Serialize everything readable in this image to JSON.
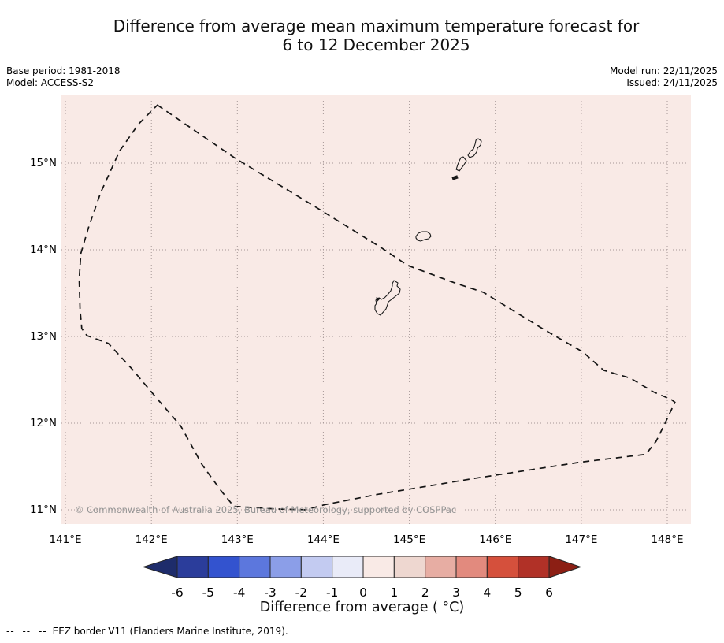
{
  "title": {
    "line1": "Difference from average mean maximum temperature forecast for",
    "line2": "6 to 12 December 2025"
  },
  "meta": {
    "base_period": "Base period: 1981-2018",
    "model": "Model: ACCESS-S2",
    "model_run": "Model run: 22/11/2025",
    "issued": "Issued: 24/11/2025"
  },
  "map": {
    "watermark": "© Commonwealth of Australia 2025, Bureau of Meteorology, supported by COSPPac",
    "fill_color": "#f9eae6"
  },
  "colorbar": {
    "label": "Difference from average ( °C)",
    "ticks": [
      -6,
      -5,
      -4,
      -3,
      -2,
      -1,
      0,
      1,
      2,
      3,
      4,
      5,
      6
    ],
    "segment_colors": [
      "#2b3d9b",
      "#3353cf",
      "#5c77dd",
      "#8b9ee8",
      "#c3cbf1",
      "#e9ebf8",
      "#f9eae6",
      "#eed7d0",
      "#e7ada3",
      "#e28a7e",
      "#d5503c",
      "#b13127"
    ],
    "arrow_left_color": "#1e2c6b",
    "arrow_right_color": "#8c1f14"
  },
  "footnote": {
    "dashes": "-- -- --",
    "text": "EEZ border V11 (Flanders Marine Institute, 2019)."
  },
  "chart_data": {
    "type": "map",
    "title": "Difference from average mean maximum temperature forecast for 6 to 12 December 2025",
    "region": "Guam and Northern Mariana Islands EEZ",
    "x_axis_range_deg_east": [
      140.95,
      148.27
    ],
    "y_axis_range_deg_north": [
      10.84,
      15.79
    ],
    "field": "difference from average mean maximum temperature (°C)",
    "field_uniform": true,
    "field_value_bin_c": [
      0,
      1
    ],
    "colorbar_range_c": [
      -6,
      6
    ],
    "x_ticks": [
      {
        "label": "141°E",
        "lon": 141
      },
      {
        "label": "142°E",
        "lon": 142
      },
      {
        "label": "143°E",
        "lon": 143
      },
      {
        "label": "144°E",
        "lon": 144
      },
      {
        "label": "145°E",
        "lon": 145
      },
      {
        "label": "146°E",
        "lon": 146
      },
      {
        "label": "147°E",
        "lon": 147
      },
      {
        "label": "148°E",
        "lon": 148
      }
    ],
    "y_ticks": [
      {
        "label": "15°N",
        "lat": 15
      },
      {
        "label": "14°N",
        "lat": 14
      },
      {
        "label": "13°N",
        "lat": 13
      },
      {
        "label": "12°N",
        "lat": 12
      },
      {
        "label": "11°N",
        "lat": 11
      }
    ],
    "eez_border_deg": [
      [
        142.07,
        15.67
      ],
      [
        142.97,
        15.06
      ],
      [
        143.9,
        14.5
      ],
      [
        144.68,
        14.02
      ],
      [
        144.98,
        13.82
      ],
      [
        145.55,
        13.61
      ],
      [
        145.86,
        13.51
      ],
      [
        146.55,
        13.09
      ],
      [
        147.02,
        12.82
      ],
      [
        147.26,
        12.61
      ],
      [
        147.57,
        12.52
      ],
      [
        147.84,
        12.36
      ],
      [
        148.05,
        12.27
      ],
      [
        148.09,
        12.24
      ],
      [
        148.07,
        12.2
      ],
      [
        147.96,
        11.97
      ],
      [
        147.87,
        11.79
      ],
      [
        147.75,
        11.64
      ],
      [
        146.99,
        11.55
      ],
      [
        145.74,
        11.36
      ],
      [
        144.64,
        11.18
      ],
      [
        144.02,
        11.06
      ],
      [
        143.79,
        11.0
      ],
      [
        143.45,
        11.01
      ],
      [
        142.96,
        11.04
      ],
      [
        142.81,
        11.22
      ],
      [
        142.59,
        11.52
      ],
      [
        142.34,
        11.97
      ],
      [
        142.06,
        12.29
      ],
      [
        141.78,
        12.62
      ],
      [
        141.5,
        12.92
      ],
      [
        141.25,
        13.01
      ],
      [
        141.19,
        13.09
      ],
      [
        141.17,
        13.32
      ],
      [
        141.16,
        13.66
      ],
      [
        141.18,
        13.96
      ],
      [
        141.27,
        14.26
      ],
      [
        141.41,
        14.66
      ],
      [
        141.63,
        15.14
      ],
      [
        141.85,
        15.45
      ]
    ],
    "islands": [
      {
        "name": "guam",
        "filled": false,
        "points": [
          [
            144.821,
            13.645
          ],
          [
            144.866,
            13.618
          ],
          [
            144.857,
            13.582
          ],
          [
            144.894,
            13.545
          ],
          [
            144.885,
            13.5
          ],
          [
            144.839,
            13.464
          ],
          [
            144.793,
            13.427
          ],
          [
            144.757,
            13.4
          ],
          [
            144.729,
            13.318
          ],
          [
            144.665,
            13.245
          ],
          [
            144.628,
            13.264
          ],
          [
            144.601,
            13.309
          ],
          [
            144.601,
            13.355
          ],
          [
            144.619,
            13.382
          ],
          [
            144.61,
            13.418
          ],
          [
            144.647,
            13.445
          ],
          [
            144.674,
            13.427
          ],
          [
            144.711,
            13.445
          ],
          [
            144.747,
            13.482
          ],
          [
            144.784,
            13.527
          ],
          [
            144.802,
            13.582
          ],
          [
            144.802,
            13.609
          ]
        ]
      },
      {
        "name": "guam-apra-harbor",
        "filled": true,
        "points": [
          [
            144.619,
            13.445
          ],
          [
            144.656,
            13.436
          ],
          [
            144.628,
            13.409
          ]
        ]
      },
      {
        "name": "rota",
        "filled": false,
        "points": [
          [
            145.077,
            14.155
          ],
          [
            145.105,
            14.191
          ],
          [
            145.15,
            14.209
          ],
          [
            145.205,
            14.209
          ],
          [
            145.242,
            14.182
          ],
          [
            145.251,
            14.155
          ],
          [
            145.224,
            14.127
          ],
          [
            145.178,
            14.118
          ],
          [
            145.132,
            14.1
          ],
          [
            145.096,
            14.109
          ],
          [
            145.077,
            14.136
          ]
        ]
      },
      {
        "name": "aguijan",
        "filled": true,
        "points": [
          [
            145.499,
            14.836
          ],
          [
            145.554,
            14.855
          ],
          [
            145.563,
            14.827
          ],
          [
            145.508,
            14.809
          ]
        ]
      },
      {
        "name": "tinian",
        "filled": false,
        "points": [
          [
            145.627,
            15.073
          ],
          [
            145.664,
            15.027
          ],
          [
            145.636,
            14.982
          ],
          [
            145.609,
            14.945
          ],
          [
            145.581,
            14.909
          ],
          [
            145.545,
            14.927
          ],
          [
            145.563,
            14.982
          ],
          [
            145.581,
            15.027
          ],
          [
            145.6,
            15.064
          ]
        ]
      },
      {
        "name": "saipan",
        "filled": false,
        "points": [
          [
            145.801,
            15.282
          ],
          [
            145.838,
            15.255
          ],
          [
            145.829,
            15.209
          ],
          [
            145.792,
            15.173
          ],
          [
            145.783,
            15.127
          ],
          [
            145.746,
            15.082
          ],
          [
            145.7,
            15.064
          ],
          [
            145.682,
            15.091
          ],
          [
            145.709,
            15.136
          ],
          [
            145.746,
            15.164
          ],
          [
            145.764,
            15.218
          ],
          [
            145.774,
            15.264
          ]
        ]
      }
    ],
    "legend_position": "bottom",
    "grid": true
  }
}
